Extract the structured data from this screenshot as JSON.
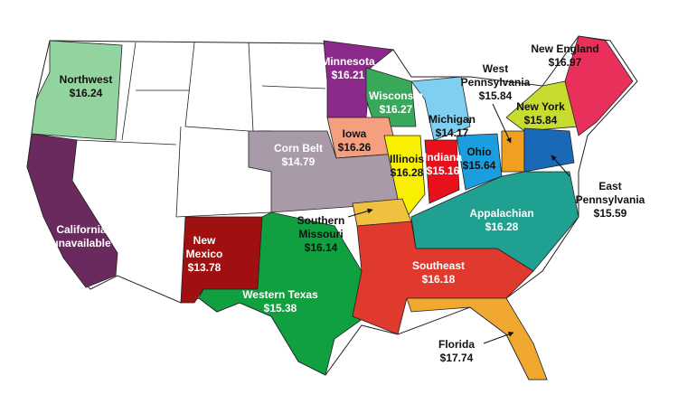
{
  "regions": [
    {
      "name": "Northwest",
      "price": "$16.24"
    },
    {
      "name": "California",
      "price": "unavailable"
    },
    {
      "name": "Minnesota",
      "price": "$16.21"
    },
    {
      "name": "Wisconsin",
      "price": "$16.27"
    },
    {
      "name": "Michigan",
      "price": "$14.17"
    },
    {
      "name": "Iowa",
      "price": "$16.26"
    },
    {
      "name": "Corn Belt",
      "price": "$14.79"
    },
    {
      "name": "Illinois",
      "price": "$16.28"
    },
    {
      "name": "Indiana",
      "price": "$15.16"
    },
    {
      "name": "Ohio",
      "price": "$15.64"
    },
    {
      "name": "West Pennsylvania",
      "price": "$15.84"
    },
    {
      "name": "New York",
      "price": "$15.84"
    },
    {
      "name": "New England",
      "price": "$16.97"
    },
    {
      "name": "East Pennsylvania",
      "price": "$15.59"
    },
    {
      "name": "Appalachian",
      "price": "$16.28"
    },
    {
      "name": "Southern Missouri",
      "price": "$16.14"
    },
    {
      "name": "New Mexico",
      "price": "$13.78"
    },
    {
      "name": "Western Texas",
      "price": "$15.38"
    },
    {
      "name": "Southeast",
      "price": "$16.18"
    },
    {
      "name": "Florida",
      "price": "$17.74"
    }
  ]
}
